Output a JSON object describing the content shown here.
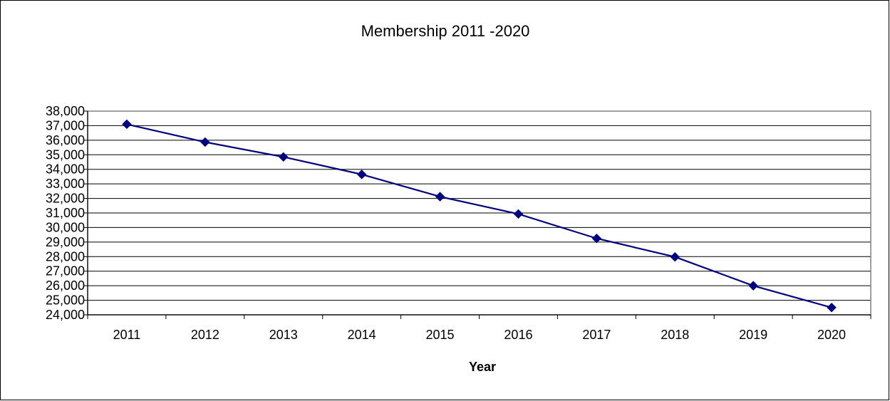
{
  "chart_data": {
    "type": "line",
    "title": "Membership 2011 -2020",
    "xlabel": "Year",
    "ylabel": "",
    "categories": [
      "2011",
      "2012",
      "2013",
      "2014",
      "2015",
      "2016",
      "2017",
      "2018",
      "2019",
      "2020"
    ],
    "series": [
      {
        "values": [
          37100,
          35870,
          34850,
          33650,
          32120,
          30930,
          29250,
          27980,
          26000,
          24500
        ],
        "color": "#000080",
        "marker": "diamond"
      }
    ],
    "ylim": [
      24000,
      38000
    ],
    "ytick_step": 1000,
    "y_tick_labels": [
      "24,000",
      "25,000",
      "26,000",
      "27,000",
      "28,000",
      "29,000",
      "30,000",
      "31,000",
      "32,000",
      "33,000",
      "34,000",
      "35,000",
      "36,000",
      "37,000",
      "38,000"
    ],
    "grid": true,
    "legend": "none",
    "plot_background": "#ffffff",
    "plot_border_color": "#808080",
    "gridline_color": "#000000"
  }
}
